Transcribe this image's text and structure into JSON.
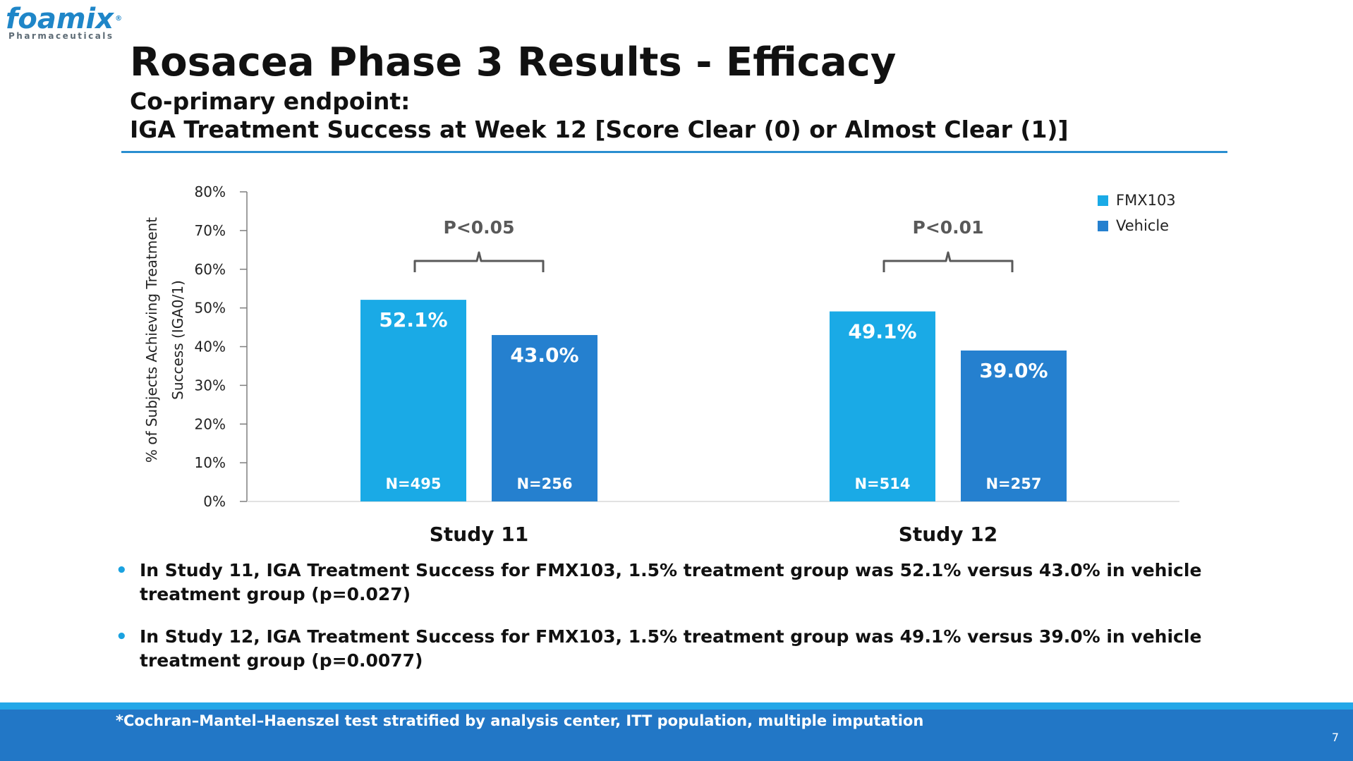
{
  "logo": {
    "brand": "foamix",
    "reg": "®",
    "tagline": "Pharmaceuticals"
  },
  "slide": {
    "title": "Rosacea Phase 3 Results - Efficacy",
    "subtitle_line1": "Co-primary endpoint:",
    "subtitle_line2": "IGA Treatment Success at Week 12  [Score Clear (0) or Almost Clear (1)]",
    "page_number": "7"
  },
  "chart_data": {
    "type": "bar",
    "categories": [
      "Study 11",
      "Study 12"
    ],
    "series": [
      {
        "name": "FMX103",
        "values": [
          52.1,
          49.1
        ],
        "labels": [
          "52.1%",
          "49.1%"
        ],
        "n": [
          "N=495",
          "N=514"
        ],
        "color": "#1aaae6"
      },
      {
        "name": "Vehicle",
        "values": [
          43.0,
          39.0
        ],
        "labels": [
          "43.0%",
          "39.0%"
        ],
        "n": [
          "N=256",
          "N=257"
        ],
        "color": "#2580cf"
      }
    ],
    "significance": [
      "P<0.05",
      "P<0.01"
    ],
    "ylabel_line1": "% of Subjects Achieving Treatment",
    "ylabel_line2": "Success (IGA0/1)",
    "ylim": [
      0,
      80
    ],
    "yticks": [
      0,
      10,
      20,
      30,
      40,
      50,
      60,
      70,
      80
    ],
    "ytick_labels": [
      "0%",
      "10%",
      "20%",
      "30%",
      "40%",
      "50%",
      "60%",
      "70%",
      "80%"
    ],
    "legend_position": "top-right"
  },
  "bullets": [
    "In Study 11, IGA Treatment Success for FMX103, 1.5% treatment group was 52.1% versus 43.0% in vehicle treatment group (p=0.027)",
    "In Study 12, IGA Treatment Success for FMX103, 1.5% treatment group was 49.1% versus 39.0% in vehicle treatment group (p=0.0077)"
  ],
  "footer": {
    "note": "*Cochran–Mantel–Haenszel test stratified by analysis center, ITT population, multiple imputation"
  }
}
